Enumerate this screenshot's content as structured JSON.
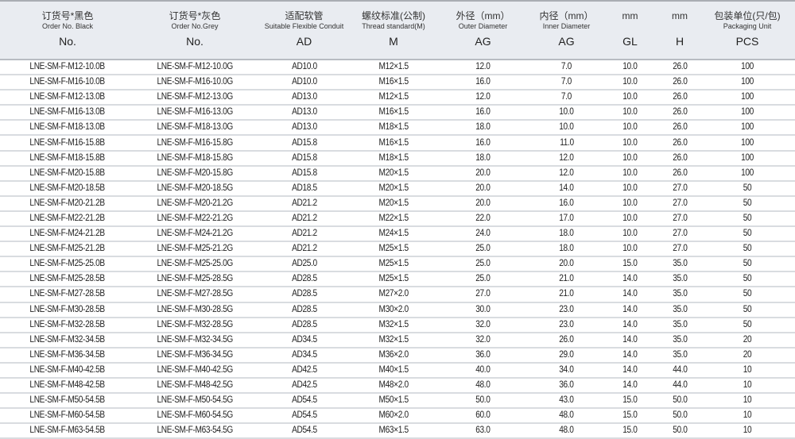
{
  "headers": [
    {
      "zh": "订货号*黑色",
      "en": "Order No. Black",
      "code": "No."
    },
    {
      "zh": "订货号*灰色",
      "en": "Order No.Grey",
      "code": "No."
    },
    {
      "zh": "适配软管",
      "en": "Suitable Flexible Conduit",
      "code": "AD"
    },
    {
      "zh": "螺纹标准(公制)",
      "en": "Thread standard(M)",
      "code": "M"
    },
    {
      "zh": "外径（mm）",
      "en": "Outer Diameter",
      "code": "AG"
    },
    {
      "zh": "内径（mm）",
      "en": "Inner Diameter",
      "code": "AG"
    },
    {
      "zh": "mm",
      "en": "",
      "code": "GL"
    },
    {
      "zh": "mm",
      "en": "",
      "code": "H"
    },
    {
      "zh": "包装单位(只/包)",
      "en": "Packaging Unit",
      "code": "PCS"
    }
  ],
  "rows": [
    [
      "LNE-SM-F-M12-10.0B",
      "LNE-SM-F-M12-10.0G",
      "AD10.0",
      "M12×1.5",
      "12.0",
      "7.0",
      "10.0",
      "26.0",
      "100"
    ],
    [
      "LNE-SM-F-M16-10.0B",
      "LNE-SM-F-M16-10.0G",
      "AD10.0",
      "M16×1.5",
      "16.0",
      "7.0",
      "10.0",
      "26.0",
      "100"
    ],
    [
      "LNE-SM-F-M12-13.0B",
      "LNE-SM-F-M12-13.0G",
      "AD13.0",
      "M12×1.5",
      "12.0",
      "7.0",
      "10.0",
      "26.0",
      "100"
    ],
    [
      "LNE-SM-F-M16-13.0B",
      "LNE-SM-F-M16-13.0G",
      "AD13.0",
      "M16×1.5",
      "16.0",
      "10.0",
      "10.0",
      "26.0",
      "100"
    ],
    [
      "LNE-SM-F-M18-13.0B",
      "LNE-SM-F-M18-13.0G",
      "AD13.0",
      "M18×1.5",
      "18.0",
      "10.0",
      "10.0",
      "26.0",
      "100"
    ],
    [
      "LNE-SM-F-M16-15.8B",
      "LNE-SM-F-M16-15.8G",
      "AD15.8",
      "M16×1.5",
      "16.0",
      "11.0",
      "10.0",
      "26.0",
      "100"
    ],
    [
      "LNE-SM-F-M18-15.8B",
      "LNE-SM-F-M18-15.8G",
      "AD15.8",
      "M18×1.5",
      "18.0",
      "12.0",
      "10.0",
      "26.0",
      "100"
    ],
    [
      "LNE-SM-F-M20-15.8B",
      "LNE-SM-F-M20-15.8G",
      "AD15.8",
      "M20×1.5",
      "20.0",
      "12.0",
      "10.0",
      "26.0",
      "100"
    ],
    [
      "LNE-SM-F-M20-18.5B",
      "LNE-SM-F-M20-18.5G",
      "AD18.5",
      "M20×1.5",
      "20.0",
      "14.0",
      "10.0",
      "27.0",
      "50"
    ],
    [
      "LNE-SM-F-M20-21.2B",
      "LNE-SM-F-M20-21.2G",
      "AD21.2",
      "M20×1.5",
      "20.0",
      "16.0",
      "10.0",
      "27.0",
      "50"
    ],
    [
      "LNE-SM-F-M22-21.2B",
      "LNE-SM-F-M22-21.2G",
      "AD21.2",
      "M22×1.5",
      "22.0",
      "17.0",
      "10.0",
      "27.0",
      "50"
    ],
    [
      "LNE-SM-F-M24-21.2B",
      "LNE-SM-F-M24-21.2G",
      "AD21.2",
      "M24×1.5",
      "24.0",
      "18.0",
      "10.0",
      "27.0",
      "50"
    ],
    [
      "LNE-SM-F-M25-21.2B",
      "LNE-SM-F-M25-21.2G",
      "AD21.2",
      "M25×1.5",
      "25.0",
      "18.0",
      "10.0",
      "27.0",
      "50"
    ],
    [
      "LNE-SM-F-M25-25.0B",
      "LNE-SM-F-M25-25.0G",
      "AD25.0",
      "M25×1.5",
      "25.0",
      "20.0",
      "15.0",
      "35.0",
      "50"
    ],
    [
      "LNE-SM-F-M25-28.5B",
      "LNE-SM-F-M25-28.5G",
      "AD28.5",
      "M25×1.5",
      "25.0",
      "21.0",
      "14.0",
      "35.0",
      "50"
    ],
    [
      "LNE-SM-F-M27-28.5B",
      "LNE-SM-F-M27-28.5G",
      "AD28.5",
      "M27×2.0",
      "27.0",
      "21.0",
      "14.0",
      "35.0",
      "50"
    ],
    [
      "LNE-SM-F-M30-28.5B",
      "LNE-SM-F-M30-28.5G",
      "AD28.5",
      "M30×2.0",
      "30.0",
      "23.0",
      "14.0",
      "35.0",
      "50"
    ],
    [
      "LNE-SM-F-M32-28.5B",
      "LNE-SM-F-M32-28.5G",
      "AD28.5",
      "M32×1.5",
      "32.0",
      "23.0",
      "14.0",
      "35.0",
      "50"
    ],
    [
      "LNE-SM-F-M32-34.5B",
      "LNE-SM-F-M32-34.5G",
      "AD34.5",
      "M32×1.5",
      "32.0",
      "26.0",
      "14.0",
      "35.0",
      "20"
    ],
    [
      "LNE-SM-F-M36-34.5B",
      "LNE-SM-F-M36-34.5G",
      "AD34.5",
      "M36×2.0",
      "36.0",
      "29.0",
      "14.0",
      "35.0",
      "20"
    ],
    [
      "LNE-SM-F-M40-42.5B",
      "LNE-SM-F-M40-42.5G",
      "AD42.5",
      "M40×1.5",
      "40.0",
      "34.0",
      "14.0",
      "44.0",
      "10"
    ],
    [
      "LNE-SM-F-M48-42.5B",
      "LNE-SM-F-M48-42.5G",
      "AD42.5",
      "M48×2.0",
      "48.0",
      "36.0",
      "14.0",
      "44.0",
      "10"
    ],
    [
      "LNE-SM-F-M50-54.5B",
      "LNE-SM-F-M50-54.5G",
      "AD54.5",
      "M50×1.5",
      "50.0",
      "43.0",
      "15.0",
      "50.0",
      "10"
    ],
    [
      "LNE-SM-F-M60-54.5B",
      "LNE-SM-F-M60-54.5G",
      "AD54.5",
      "M60×2.0",
      "60.0",
      "48.0",
      "15.0",
      "50.0",
      "10"
    ],
    [
      "LNE-SM-F-M63-54.5B",
      "LNE-SM-F-M63-54.5G",
      "AD54.5",
      "M63×1.5",
      "63.0",
      "48.0",
      "15.0",
      "50.0",
      "10"
    ]
  ]
}
